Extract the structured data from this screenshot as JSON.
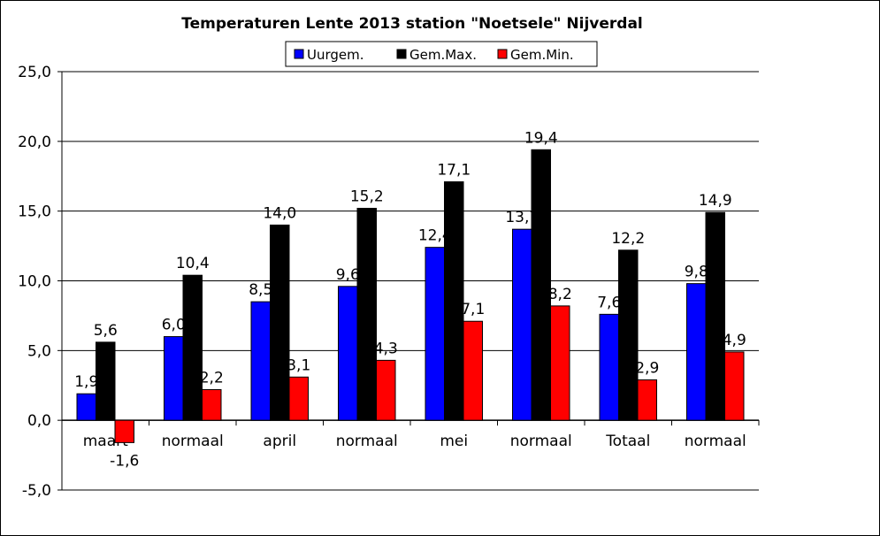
{
  "chart_data": {
    "type": "bar",
    "title": "Temperaturen Lente 2013 station \"Noetsele\" Nijverdal",
    "xlabel": "",
    "ylabel": "",
    "categories": [
      "maart",
      "normaal",
      "april",
      "normaal",
      "mei",
      "normaal",
      "Totaal",
      "normaal"
    ],
    "series": [
      {
        "name": "Uurgem.",
        "color": "#0000ff",
        "values": [
          1.9,
          6.0,
          8.5,
          9.6,
          12.4,
          13.7,
          7.6,
          9.8
        ]
      },
      {
        "name": "Gem.Max.",
        "color": "#000000",
        "values": [
          5.6,
          10.4,
          14.0,
          15.2,
          17.1,
          19.4,
          12.2,
          14.9
        ]
      },
      {
        "name": "Gem.Min.",
        "color": "#ff0000",
        "values": [
          -1.6,
          2.2,
          3.1,
          4.3,
          7.1,
          8.2,
          2.9,
          4.9
        ]
      }
    ],
    "ylim": [
      -5,
      25
    ],
    "yticks": [
      -5,
      0,
      5,
      10,
      15,
      20,
      25
    ],
    "decimal_separator": ",",
    "grid": true,
    "legend_position": "top"
  }
}
